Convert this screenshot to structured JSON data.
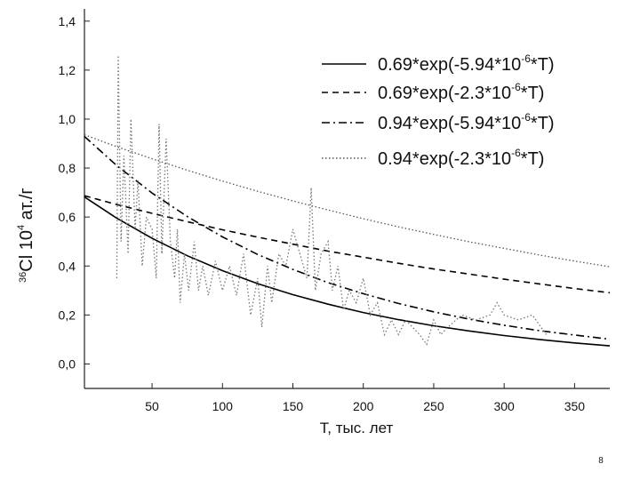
{
  "chart_data": {
    "type": "line",
    "xlabel": "T, тыс. лет",
    "ylabel": {
      "isotope": "36",
      "element": "Cl 10",
      "exponent": "4",
      "unit": " ат./г"
    },
    "xlim": [
      2,
      375
    ],
    "ylim": [
      -0.1,
      1.45
    ],
    "xticks": [
      50,
      100,
      150,
      200,
      250,
      300,
      350
    ],
    "yticks": [
      {
        "value": 0,
        "label": "0,0"
      },
      {
        "value": 0.2,
        "label": "0,2"
      },
      {
        "value": 0.4,
        "label": "0,4"
      },
      {
        "value": 0.6,
        "label": "0,6"
      },
      {
        "value": 0.8,
        "label": "0,8"
      },
      {
        "value": 1.0,
        "label": "1,0"
      },
      {
        "value": 1.2,
        "label": "1,2"
      },
      {
        "value": 1.4,
        "label": "1,4"
      }
    ],
    "series": [
      {
        "name": [
          "0.69*exp(-5.94*10",
          "-6",
          "*T)"
        ],
        "color": "#000000",
        "dash": "solid",
        "x": [
          2,
          25,
          50,
          75,
          100,
          125,
          150,
          175,
          200,
          225,
          250,
          275,
          300,
          325,
          350,
          375
        ],
        "values": [
          0.682,
          0.595,
          0.513,
          0.442,
          0.381,
          0.328,
          0.283,
          0.244,
          0.21,
          0.181,
          0.156,
          0.135,
          0.116,
          0.1,
          0.086,
          0.074
        ]
      },
      {
        "name": [
          "0.69*exp(-2.3*10",
          "-6",
          "*T)"
        ],
        "color": "#000000",
        "dash": "dashed",
        "x": [
          2,
          25,
          50,
          75,
          100,
          125,
          150,
          175,
          200,
          225,
          250,
          275,
          300,
          325,
          350,
          375
        ],
        "values": [
          0.687,
          0.651,
          0.615,
          0.581,
          0.548,
          0.518,
          0.489,
          0.461,
          0.436,
          0.411,
          0.388,
          0.367,
          0.346,
          0.327,
          0.308,
          0.291
        ]
      },
      {
        "name": [
          "0.94*exp(-5.94*10",
          "-6",
          "*T)"
        ],
        "color": "#000000",
        "dash": "dashdot",
        "x": [
          2,
          25,
          50,
          75,
          100,
          125,
          150,
          175,
          200,
          225,
          250,
          275,
          300,
          325,
          350,
          375
        ],
        "values": [
          0.929,
          0.81,
          0.698,
          0.602,
          0.519,
          0.447,
          0.386,
          0.332,
          0.287,
          0.247,
          0.213,
          0.183,
          0.158,
          0.136,
          0.118,
          0.101
        ]
      },
      {
        "name": [
          "0.94*exp(-2.3*10",
          "-6",
          "*T)"
        ],
        "color": "#555555",
        "dash": "dotted",
        "x": [
          2,
          25,
          50,
          75,
          100,
          125,
          150,
          175,
          200,
          225,
          250,
          275,
          300,
          325,
          350,
          375
        ],
        "values": [
          0.936,
          0.887,
          0.838,
          0.791,
          0.747,
          0.705,
          0.666,
          0.629,
          0.593,
          0.56,
          0.529,
          0.499,
          0.472,
          0.445,
          0.42,
          0.397
        ]
      },
      {
        "color": "#777777",
        "dash": "dotted",
        "x": [
          25,
          26,
          28,
          30,
          33,
          35,
          38,
          40,
          43,
          46,
          50,
          53,
          55,
          57,
          60,
          63,
          66,
          68,
          70,
          73,
          76,
          80,
          83,
          86,
          90,
          95,
          100,
          105,
          110,
          115,
          120,
          125,
          128,
          132,
          135,
          140,
          145,
          150,
          155,
          160,
          163,
          166,
          170,
          175,
          178,
          182,
          186,
          190,
          195,
          200,
          205,
          210,
          215,
          220,
          225,
          230,
          240,
          245,
          250,
          255,
          260,
          270,
          280,
          290,
          295,
          300,
          310,
          320,
          330
        ],
        "values": [
          0.35,
          1.26,
          0.5,
          0.85,
          0.45,
          1.0,
          0.55,
          0.75,
          0.4,
          0.6,
          0.55,
          0.35,
          0.98,
          0.45,
          0.92,
          0.5,
          0.35,
          0.55,
          0.25,
          0.45,
          0.3,
          0.5,
          0.3,
          0.4,
          0.28,
          0.42,
          0.3,
          0.4,
          0.28,
          0.45,
          0.2,
          0.35,
          0.15,
          0.4,
          0.25,
          0.45,
          0.4,
          0.55,
          0.45,
          0.35,
          0.72,
          0.3,
          0.45,
          0.5,
          0.3,
          0.4,
          0.22,
          0.3,
          0.25,
          0.35,
          0.2,
          0.25,
          0.12,
          0.18,
          0.12,
          0.18,
          0.12,
          0.08,
          0.18,
          0.12,
          0.15,
          0.2,
          0.18,
          0.2,
          0.25,
          0.2,
          0.18,
          0.2,
          0.12
        ]
      }
    ]
  },
  "slide_number": "8"
}
